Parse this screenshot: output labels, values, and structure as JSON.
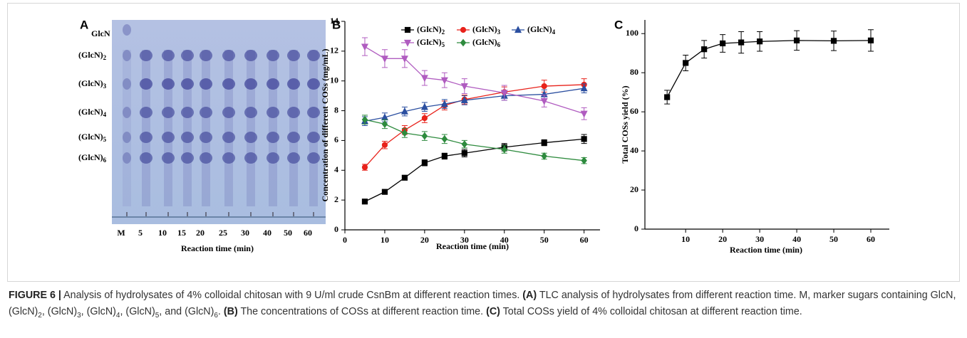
{
  "tlc": {
    "panel_label": "A",
    "marker_labels": [
      "GlcN",
      "(GlcN)2",
      "(GlcN)3",
      "(GlcN)4",
      "(GlcN)5",
      "(GlcN)6"
    ],
    "lane_labels": [
      "M",
      "5",
      "10",
      "15",
      "20",
      "25",
      "30",
      "40",
      "50",
      "60"
    ],
    "xlabel": "Reaction time (min)"
  },
  "chart_data": [
    {
      "type": "line",
      "panel_label": "B",
      "xlabel": "Reaction time (min)",
      "ylabel": "Concentration of different COSs (mg/mL)",
      "x": [
        5,
        10,
        15,
        20,
        25,
        30,
        40,
        50,
        60
      ],
      "xlim": [
        0,
        64
      ],
      "xticks": [
        0,
        10,
        20,
        30,
        40,
        50,
        60
      ],
      "ylim": [
        0,
        14
      ],
      "yticks": [
        0,
        2,
        4,
        6,
        8,
        10,
        12,
        14
      ],
      "series": [
        {
          "name": "(GlcN)2",
          "color": "#000000",
          "marker": "square",
          "values": [
            1.9,
            2.55,
            3.5,
            4.5,
            4.95,
            5.15,
            5.55,
            5.85,
            6.1
          ],
          "errors": [
            0.1,
            0.1,
            0.15,
            0.2,
            0.2,
            0.25,
            0.25,
            0.2,
            0.3
          ]
        },
        {
          "name": "(GlcN)3",
          "color": "#e8221b",
          "marker": "circle",
          "values": [
            4.2,
            5.7,
            6.7,
            7.5,
            8.35,
            8.75,
            9.25,
            9.65,
            9.75
          ],
          "errors": [
            0.2,
            0.25,
            0.3,
            0.3,
            0.3,
            0.3,
            0.35,
            0.4,
            0.4
          ]
        },
        {
          "name": "(GlcN)4",
          "color": "#2b4fa0",
          "marker": "triangle",
          "values": [
            7.3,
            7.55,
            7.95,
            8.25,
            8.45,
            8.7,
            9.0,
            9.1,
            9.5
          ],
          "errors": [
            0.3,
            0.3,
            0.3,
            0.3,
            0.3,
            0.3,
            0.3,
            0.3,
            0.3
          ]
        },
        {
          "name": "(GlcN)5",
          "color": "#b05cc0",
          "marker": "triangle-down",
          "values": [
            12.3,
            11.5,
            11.5,
            10.2,
            10.05,
            9.65,
            9.2,
            8.65,
            7.8
          ],
          "errors": [
            0.6,
            0.6,
            0.6,
            0.5,
            0.5,
            0.5,
            0.5,
            0.4,
            0.4
          ]
        },
        {
          "name": "(GlcN)6",
          "color": "#2e8b3e",
          "marker": "diamond",
          "values": [
            7.4,
            7.1,
            6.5,
            6.3,
            6.1,
            5.75,
            5.4,
            4.95,
            4.65
          ],
          "errors": [
            0.3,
            0.3,
            0.3,
            0.3,
            0.3,
            0.25,
            0.25,
            0.2,
            0.2
          ]
        }
      ]
    },
    {
      "type": "line",
      "panel_label": "C",
      "xlabel": "Reaction time (min)",
      "ylabel": "Total COSs yield (%)",
      "x": [
        5,
        10,
        15,
        20,
        25,
        30,
        40,
        50,
        60
      ],
      "xlim": [
        -1,
        65
      ],
      "xticks": [
        10,
        20,
        30,
        40,
        50,
        60
      ],
      "ylim": [
        0,
        107
      ],
      "yticks": [
        0,
        20,
        40,
        60,
        80,
        100
      ],
      "series": [
        {
          "color": "#000000",
          "marker": "square",
          "values": [
            67.5,
            85,
            92,
            95,
            95.5,
            96,
            96.5,
            96.3,
            96.5
          ],
          "errors": [
            3.5,
            4,
            4.5,
            4.5,
            5.5,
            5,
            5,
            5,
            5.5
          ]
        }
      ]
    }
  ],
  "caption": {
    "parts": [
      "FIGURE 6 |",
      " Analysis of hydrolysates of 4% colloidal chitosan with 9 U/ml crude CsnBm at different reaction times. ",
      "(A)",
      " TLC analysis of hydrolysates from different reaction time. M, marker sugars containing GlcN, (GlcN)",
      "2",
      ", (GlcN)",
      "3",
      ", (GlcN)",
      "4",
      ", (GlcN)",
      "5",
      ", and (GlcN)",
      "6",
      ". ",
      "(B)",
      " The concentrations of COSs at different reaction time. ",
      "(C)",
      " Total COSs yield of 4% colloidal chitosan at different reaction time."
    ]
  }
}
